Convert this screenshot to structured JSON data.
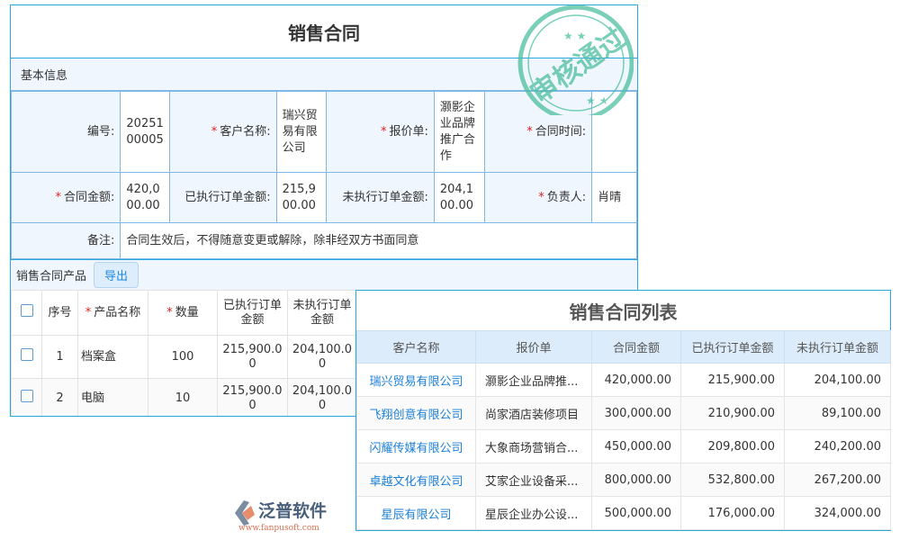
{
  "contract": {
    "title": "销售合同",
    "section_basic": "基本信息",
    "fields": {
      "number_label": "编号:",
      "number": "2025100005",
      "customer_label": "客户名称:",
      "customer": "瑞兴贸易有限公司",
      "quote_label": "报价单:",
      "quote": "灏影企业品牌推广合作",
      "date_label": "合同时间:",
      "date": "",
      "amount_label": "合同金额:",
      "amount": "420,000.00",
      "executed_label": "已执行订单金额:",
      "executed": "215,900.00",
      "unexecuted_label": "未执行订单金额:",
      "unexecuted": "204,100.00",
      "owner_label": "负责人:",
      "owner": "肖晴",
      "remark_label": "备注:",
      "remark": "合同生效后，不得随意变更或解除，除非经双方书面同意"
    },
    "products_title": "销售合同产品",
    "export_label": "导出",
    "product_headers": [
      "序号",
      "产品名称",
      "数量",
      "已执行订单金额",
      "未执行订单金额"
    ],
    "products": [
      {
        "no": "1",
        "name": "档案盒",
        "qty": "100",
        "executed": "215,900.00",
        "unexecuted": "204,100.00"
      },
      {
        "no": "2",
        "name": "电脑",
        "qty": "10",
        "executed": "215,900.00",
        "unexecuted": "204,100.00"
      }
    ]
  },
  "stamp": {
    "text": "审核通过",
    "color": "#4dbf9f"
  },
  "list": {
    "title": "销售合同列表",
    "headers": [
      "客户名称",
      "报价单",
      "合同金额",
      "已执行订单金额",
      "未执行订单金额"
    ],
    "rows": [
      [
        "瑞兴贸易有限公司",
        "灏影企业品牌推...",
        "420,000.00",
        "215,900.00",
        "204,100.00"
      ],
      [
        "飞翔创意有限公司",
        "尚家酒店装修项目",
        "300,000.00",
        "210,900.00",
        "89,100.00"
      ],
      [
        "闪耀传媒有限公司",
        "大象商场营销合...",
        "450,000.00",
        "209,800.00",
        "240,200.00"
      ],
      [
        "卓越文化有限公司",
        "艾家企业设备采...",
        "800,000.00",
        "532,800.00",
        "267,200.00"
      ],
      [
        "星辰有限公司",
        "星辰企业办公设...",
        "500,000.00",
        "176,000.00",
        "324,000.00"
      ]
    ]
  },
  "watermark": {
    "brand": "泛普软件",
    "url": "www.fanpusoft.com"
  },
  "colors": {
    "accent": "#29a7e1",
    "link": "#1c7fd6",
    "required": "#e02020"
  }
}
